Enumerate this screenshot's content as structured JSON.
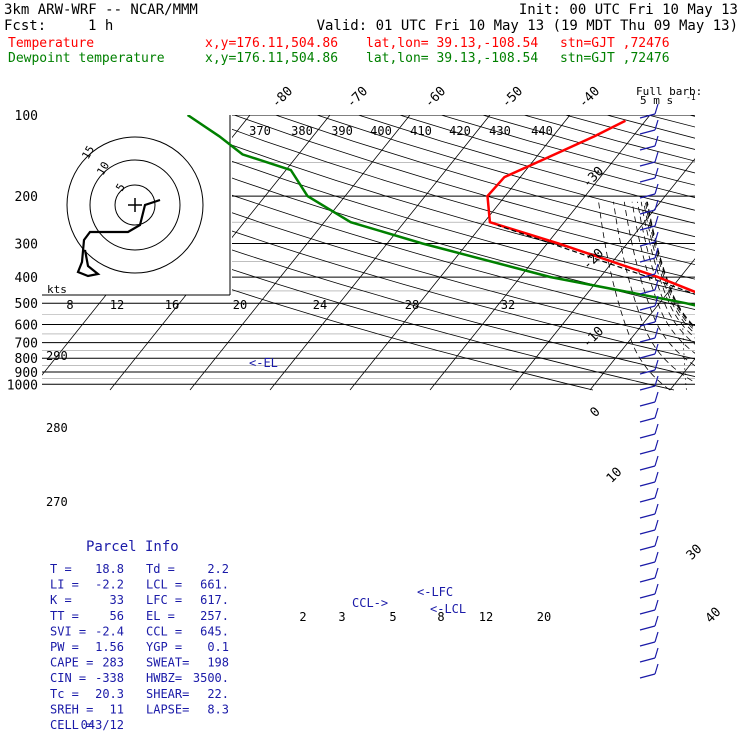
{
  "header": {
    "model": "3km ARW-WRF -- NCAR/MMM",
    "init": "Init: 00 UTC Fri 10 May 13",
    "fcst_label": "Fcst:",
    "fcst_value": "1 h",
    "valid": "Valid: 01 UTC Fri 10 May 13 (19 MDT Thu 09 May 13)",
    "line_temp": {
      "name": "Temperature",
      "xy": "x,y=176.11,504.86",
      "latlon": "lat,lon= 39.13,-108.54",
      "stn": "stn=GJT ,72476",
      "color": "#ff0000"
    },
    "line_dewp": {
      "name": "Dewpoint temperature",
      "xy": "x,y=176.11,504.86",
      "latlon": "lat,lon= 39.13,-108.54",
      "stn": "stn=GJT ,72476",
      "color": "#008000"
    }
  },
  "chart_data": {
    "type": "line",
    "pressure_levels": [
      100,
      200,
      300,
      400,
      500,
      600,
      700,
      800,
      900,
      1000
    ],
    "isotherm_labels": [
      "-80",
      "-70",
      "-60",
      "-50",
      "-40",
      "-30",
      "-20",
      "-10",
      "0",
      "10",
      "30",
      "40"
    ],
    "theta_e_labels": [
      "370",
      "380",
      "390",
      "400",
      "410",
      "420",
      "430",
      "440"
    ],
    "hodograph_speed_labels": [
      "8",
      "12",
      "16",
      "20",
      "24",
      "28",
      "32"
    ],
    "hodograph_unit": "kts",
    "hodograph_rings": [
      "5",
      "10",
      "15"
    ],
    "theta_labels": [
      "290",
      "280",
      "270"
    ],
    "mixing_ratio_labels": [
      "2",
      "3",
      "5",
      "8",
      "12",
      "20"
    ],
    "markers": {
      "el": "<-EL",
      "lfc": "<-LFC",
      "lcl": "<-LCL",
      "ccl": "CCL->"
    },
    "barb_legend": {
      "title": "Full barb:",
      "unit": "5 m s",
      "exp": "-1"
    },
    "series": [
      {
        "name": "Temperature",
        "color": "#ff0000",
        "points": [
          [
            860,
            15.5
          ],
          [
            800,
            11.7
          ],
          [
            700,
            5.0
          ],
          [
            600,
            -2.0
          ],
          [
            500,
            -12.0
          ],
          [
            400,
            -22.8
          ],
          [
            300,
            -38.6
          ],
          [
            250,
            -49.3
          ],
          [
            200,
            -52.2
          ],
          [
            170,
            -52.0
          ],
          [
            145,
            -48.7
          ],
          [
            120,
            -44.8
          ],
          [
            105,
            -42.5
          ]
        ]
      },
      {
        "name": "Dewpoint temperature",
        "color": "#008000",
        "points": [
          [
            860,
            2.2
          ],
          [
            800,
            2.9
          ],
          [
            720,
            3.5
          ],
          [
            650,
            2.0
          ],
          [
            600,
            -2.8
          ],
          [
            500,
            -16.7
          ],
          [
            400,
            -36.2
          ],
          [
            300,
            -55.6
          ],
          [
            250,
            -66.7
          ],
          [
            200,
            -74.7
          ],
          [
            160,
            -79.4
          ],
          [
            140,
            -87.0
          ],
          [
            120,
            -91.7
          ],
          [
            100,
            -97.8
          ]
        ]
      },
      {
        "name": "Parcel",
        "color": "#000000",
        "points": [
          [
            860,
            15.5
          ],
          [
            800,
            11.1
          ],
          [
            700,
            4.5
          ],
          [
            600,
            -3.0
          ],
          [
            500,
            -12.5
          ],
          [
            400,
            -24.0
          ],
          [
            300,
            -39.5
          ],
          [
            257,
            -48.0
          ]
        ]
      }
    ]
  },
  "parcel_info": {
    "title": "Parcel Info",
    "rows": [
      [
        "T  =",
        "18.8",
        "Td =",
        "2.2"
      ],
      [
        "LI =",
        "-2.2",
        "LCL =",
        "661."
      ],
      [
        "K  =",
        "33",
        "LFC =",
        "617."
      ],
      [
        "TT =",
        "56",
        "EL  =",
        "257."
      ],
      [
        "SVI =",
        "-2.4",
        "CCL =",
        "645."
      ],
      [
        "PW =",
        "1.56",
        "YGP =",
        "0.1"
      ],
      [
        "CAPE =",
        "283",
        "SWEAT=",
        "198"
      ],
      [
        "CIN =",
        "-338",
        "HWBZ=",
        "3500."
      ],
      [
        "Tc =",
        "20.3",
        "SHEAR=",
        "22."
      ],
      [
        "SREH =",
        "11",
        "LAPSE=",
        "8.3"
      ],
      [
        "CELL =",
        "043/12",
        "",
        ""
      ]
    ]
  },
  "colors": {
    "temperature": "#ff0000",
    "dewpoint": "#008000",
    "parcel_text": "#1a1aa8",
    "barbs": "#1a1aa8"
  }
}
